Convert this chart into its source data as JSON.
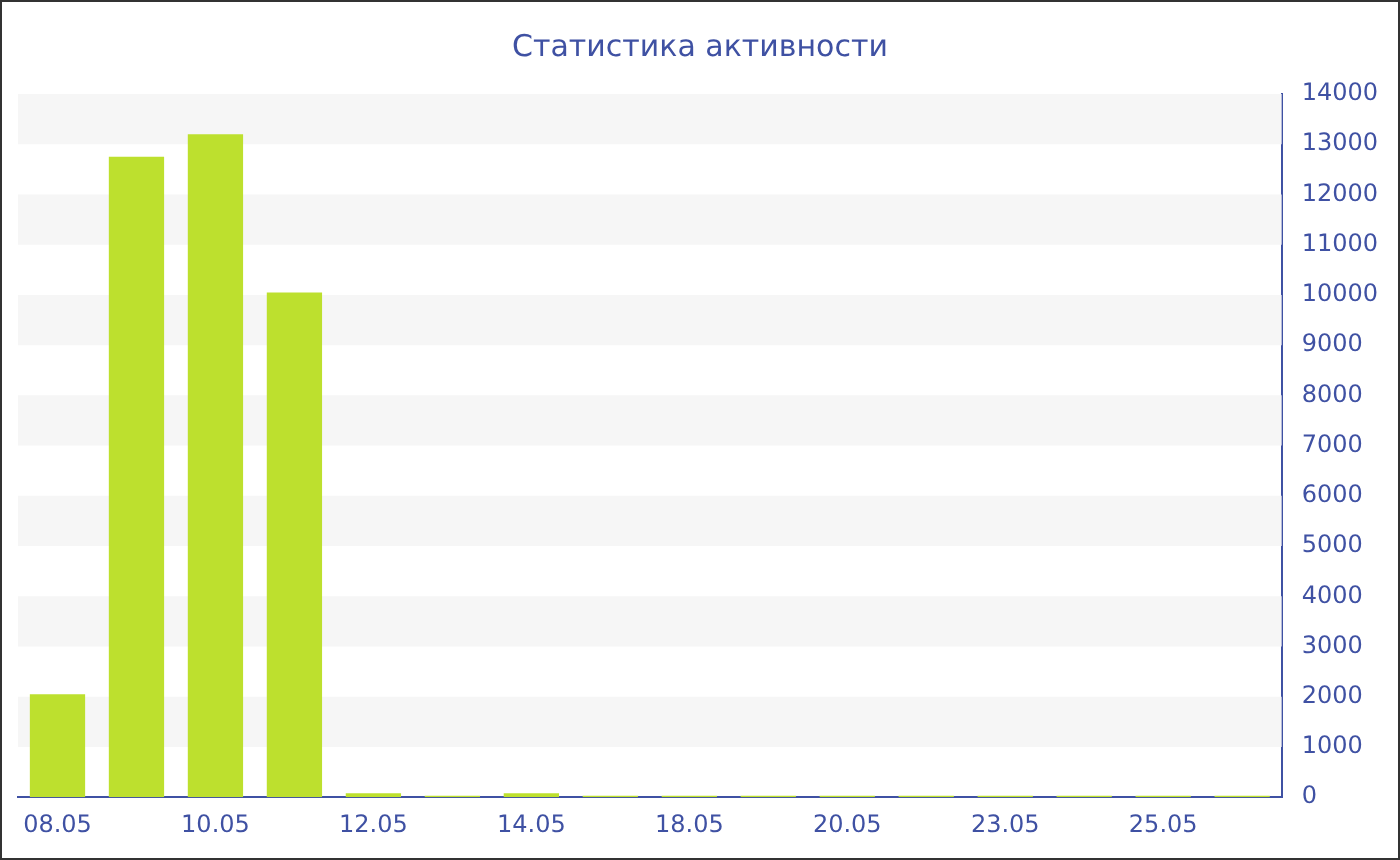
{
  "chart_data": {
    "type": "bar",
    "title": "Статистика активности",
    "categories": [
      "08.05",
      null,
      "10.05",
      null,
      "12.05",
      null,
      "14.05",
      null,
      "18.05",
      null,
      "20.05",
      null,
      "23.05",
      null,
      "25.05",
      null
    ],
    "values": [
      2050,
      12750,
      13200,
      10050,
      80,
      30,
      80,
      30,
      30,
      30,
      30,
      30,
      30,
      30,
      30,
      30
    ],
    "color": "#bde02e",
    "ylim": [
      0,
      14000
    ],
    "yticks": [
      0,
      1000,
      2000,
      3000,
      4000,
      5000,
      6000,
      7000,
      8000,
      9000,
      10000,
      11000,
      12000,
      13000,
      14000
    ],
    "bands": [
      {
        "axis": "y",
        "from": 1000,
        "to": 2000,
        "color": "#f6f6f6"
      },
      {
        "axis": "y",
        "from": 3000,
        "to": 4000,
        "color": "#f6f6f6"
      },
      {
        "axis": "y",
        "from": 5000,
        "to": 6000,
        "color": "#f6f6f6"
      },
      {
        "axis": "y",
        "from": 7000,
        "to": 8000,
        "color": "#f6f6f6"
      },
      {
        "axis": "y",
        "from": 9000,
        "to": 10000,
        "color": "#f6f6f6"
      },
      {
        "axis": "y",
        "from": 11000,
        "to": 12000,
        "color": "#f6f6f6"
      },
      {
        "axis": "y",
        "from": 13000,
        "to": 14000,
        "color": "#f6f6f6"
      }
    ]
  }
}
